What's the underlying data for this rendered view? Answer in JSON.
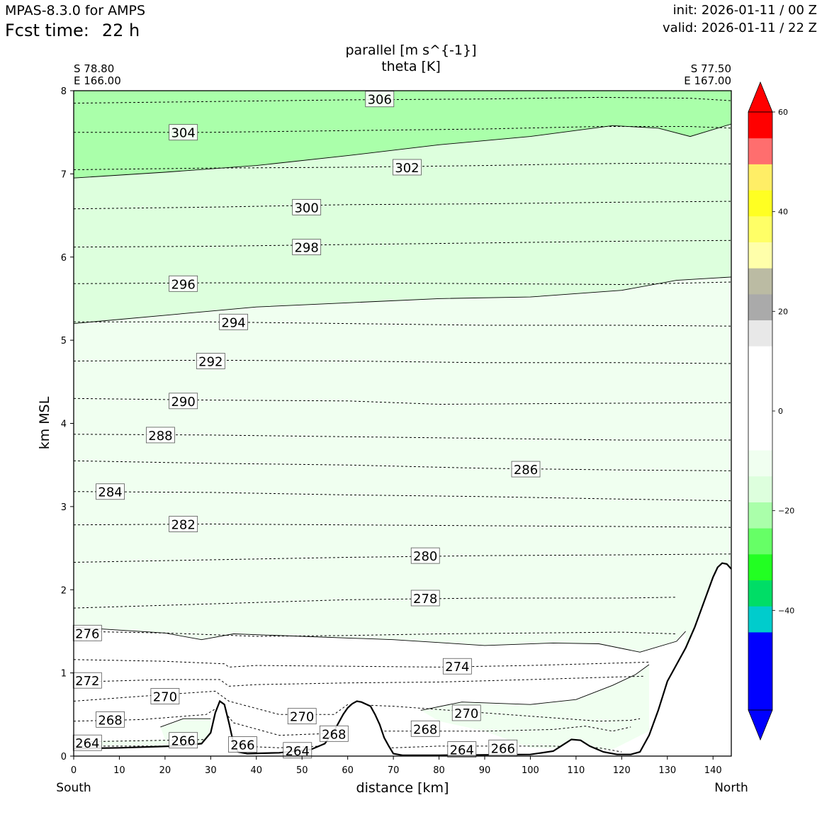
{
  "header": {
    "model": "MPAS-8.3.0 for AMPS",
    "fcst_label": "Fcst time:",
    "fcst_value": "22 h",
    "init": "init: 2026-01-11 / 00 Z",
    "valid": "valid: 2026-01-11 / 22 Z"
  },
  "titles": {
    "line1": "parallel [m s^{-1}]",
    "line2": "theta [K]"
  },
  "endpoints": {
    "left_lat": "S 78.80",
    "left_lon": "E 166.00",
    "right_lat": "S 77.50",
    "right_lon": "E 167.00",
    "left_dir": "South",
    "right_dir": "North"
  },
  "chart_data": {
    "type": "cross-section",
    "xlabel": "distance [km]",
    "ylabel": "km MSL",
    "xlim": [
      0,
      144
    ],
    "ylim": [
      0,
      8
    ],
    "x_ticks": [
      "0",
      "10",
      "20",
      "30",
      "40",
      "50",
      "60",
      "70",
      "80",
      "90",
      "100",
      "110",
      "120",
      "130",
      "140"
    ],
    "y_ticks": [
      "0",
      "1",
      "2",
      "3",
      "4",
      "5",
      "6",
      "7",
      "8"
    ],
    "filled_parallel_wind": [
      {
        "range": "-18 to -15",
        "color": "#aaffaa",
        "region": "upper layer above ~7 km (south) to ~7.6 km (north)"
      },
      {
        "range": "-15 to -12",
        "color": "#ddffdd",
        "region": "between ~5.2-5.8 km and ~7-7.6 km"
      },
      {
        "range": "-12 to -9",
        "color": "#f0fff0",
        "region": "between ~1.5 km and ~5.2-5.8 km, plus low-level pockets"
      },
      {
        "range": "-9 to 0",
        "color": "#ffffff",
        "region": "boundary layer below ~1.5 km"
      }
    ],
    "terrain": {
      "x": [
        0,
        10,
        22,
        28,
        30,
        31,
        32,
        33,
        34,
        35,
        36,
        38,
        45,
        52,
        55,
        57,
        59,
        60,
        61,
        62,
        63,
        65,
        66,
        67,
        68,
        69,
        70,
        71,
        72,
        80,
        100,
        105,
        107,
        109,
        111,
        113,
        116,
        119,
        122,
        124,
        126,
        128,
        130,
        132,
        134,
        136,
        138,
        140,
        141,
        142,
        143,
        144
      ],
      "y": [
        0.09,
        0.1,
        0.12,
        0.15,
        0.28,
        0.52,
        0.66,
        0.62,
        0.4,
        0.15,
        0.05,
        0.03,
        0.04,
        0.08,
        0.15,
        0.3,
        0.5,
        0.58,
        0.63,
        0.66,
        0.65,
        0.6,
        0.5,
        0.38,
        0.22,
        0.12,
        0.03,
        0.02,
        0.01,
        0.01,
        0.02,
        0.06,
        0.13,
        0.2,
        0.19,
        0.12,
        0.05,
        0.02,
        0.02,
        0.05,
        0.25,
        0.55,
        0.9,
        1.1,
        1.3,
        1.55,
        1.85,
        2.15,
        2.27,
        2.32,
        2.31,
        2.25
      ]
    },
    "theta_contours": [
      {
        "level": "306",
        "label_x": 67,
        "label_y": 7.9,
        "path": [
          [
            0,
            7.85
          ],
          [
            30,
            7.87
          ],
          [
            60,
            7.89
          ],
          [
            90,
            7.9
          ],
          [
            115,
            7.92
          ],
          [
            135,
            7.91
          ],
          [
            144,
            7.88
          ]
        ]
      },
      {
        "level": "304",
        "label_x": 24,
        "label_y": 7.5,
        "path": [
          [
            0,
            7.5
          ],
          [
            30,
            7.5
          ],
          [
            60,
            7.52
          ],
          [
            90,
            7.54
          ],
          [
            115,
            7.57
          ],
          [
            135,
            7.57
          ],
          [
            144,
            7.55
          ]
        ]
      },
      {
        "level": "302",
        "label_x": 73,
        "label_y": 7.08,
        "path": [
          [
            0,
            7.05
          ],
          [
            30,
            7.07
          ],
          [
            60,
            7.08
          ],
          [
            90,
            7.1
          ],
          [
            110,
            7.12
          ],
          [
            130,
            7.13
          ],
          [
            144,
            7.12
          ]
        ]
      },
      {
        "level": "300",
        "label_x": 51,
        "label_y": 6.6,
        "path": [
          [
            0,
            6.58
          ],
          [
            30,
            6.6
          ],
          [
            60,
            6.63
          ],
          [
            90,
            6.64
          ],
          [
            120,
            6.66
          ],
          [
            144,
            6.67
          ]
        ]
      },
      {
        "level": "298",
        "label_x": 51,
        "label_y": 6.12,
        "path": [
          [
            0,
            6.12
          ],
          [
            30,
            6.13
          ],
          [
            60,
            6.15
          ],
          [
            90,
            6.17
          ],
          [
            120,
            6.19
          ],
          [
            144,
            6.2
          ]
        ]
      },
      {
        "level": "296",
        "label_x": 24,
        "label_y": 5.68,
        "path": [
          [
            0,
            5.68
          ],
          [
            30,
            5.69
          ],
          [
            60,
            5.69
          ],
          [
            90,
            5.68
          ],
          [
            120,
            5.67
          ],
          [
            144,
            5.7
          ]
        ]
      },
      {
        "level": "294",
        "label_x": 35,
        "label_y": 5.22,
        "path": [
          [
            0,
            5.22
          ],
          [
            30,
            5.22
          ],
          [
            60,
            5.2
          ],
          [
            90,
            5.18
          ],
          [
            120,
            5.18
          ],
          [
            144,
            5.17
          ]
        ]
      },
      {
        "level": "292",
        "label_x": 30,
        "label_y": 4.75,
        "path": [
          [
            0,
            4.75
          ],
          [
            30,
            4.76
          ],
          [
            60,
            4.75
          ],
          [
            90,
            4.73
          ],
          [
            120,
            4.73
          ],
          [
            144,
            4.72
          ]
        ]
      },
      {
        "level": "290",
        "label_x": 24,
        "label_y": 4.27,
        "path": [
          [
            0,
            4.3
          ],
          [
            30,
            4.28
          ],
          [
            60,
            4.27
          ],
          [
            80,
            4.23
          ],
          [
            110,
            4.24
          ],
          [
            144,
            4.25
          ]
        ]
      },
      {
        "level": "288",
        "label_x": 19,
        "label_y": 3.86,
        "path": [
          [
            0,
            3.87
          ],
          [
            30,
            3.86
          ],
          [
            60,
            3.84
          ],
          [
            90,
            3.82
          ],
          [
            120,
            3.8
          ],
          [
            144,
            3.8
          ]
        ]
      },
      {
        "level": "286",
        "label_x": 99,
        "label_y": 3.45,
        "path": [
          [
            0,
            3.55
          ],
          [
            30,
            3.52
          ],
          [
            60,
            3.5
          ],
          [
            90,
            3.46
          ],
          [
            120,
            3.44
          ],
          [
            144,
            3.43
          ]
        ]
      },
      {
        "level": "284",
        "label_x": 8,
        "label_y": 3.18,
        "path": [
          [
            0,
            3.18
          ],
          [
            30,
            3.17
          ],
          [
            60,
            3.14
          ],
          [
            90,
            3.12
          ],
          [
            120,
            3.09
          ],
          [
            144,
            3.07
          ]
        ]
      },
      {
        "level": "282",
        "label_x": 24,
        "label_y": 2.79,
        "path": [
          [
            0,
            2.78
          ],
          [
            30,
            2.79
          ],
          [
            60,
            2.78
          ],
          [
            90,
            2.77
          ],
          [
            120,
            2.76
          ],
          [
            144,
            2.75
          ]
        ]
      },
      {
        "level": "280",
        "label_x": 77,
        "label_y": 2.41,
        "path": [
          [
            0,
            2.33
          ],
          [
            30,
            2.36
          ],
          [
            60,
            2.39
          ],
          [
            90,
            2.41
          ],
          [
            120,
            2.42
          ],
          [
            144,
            2.43
          ]
        ]
      },
      {
        "level": "278",
        "label_x": 77,
        "label_y": 1.9,
        "path": [
          [
            0,
            1.78
          ],
          [
            30,
            1.83
          ],
          [
            60,
            1.88
          ],
          [
            90,
            1.9
          ],
          [
            120,
            1.9
          ],
          [
            132,
            1.91
          ]
        ]
      },
      {
        "level": "276",
        "label_x": 3,
        "label_y": 1.48,
        "path": [
          [
            0,
            1.5
          ],
          [
            20,
            1.48
          ],
          [
            30,
            1.46
          ],
          [
            40,
            1.44
          ],
          [
            60,
            1.45
          ],
          [
            80,
            1.47
          ],
          [
            100,
            1.48
          ],
          [
            120,
            1.49
          ],
          [
            132,
            1.47
          ]
        ]
      },
      {
        "level": "274",
        "label_x": 84,
        "label_y": 1.08,
        "path": [
          [
            0,
            1.16
          ],
          [
            20,
            1.14
          ],
          [
            33,
            1.11
          ],
          [
            34,
            1.07
          ],
          [
            40,
            1.09
          ],
          [
            60,
            1.08
          ],
          [
            80,
            1.07
          ],
          [
            100,
            1.09
          ],
          [
            120,
            1.12
          ],
          [
            126,
            1.13
          ]
        ]
      },
      {
        "level": "272",
        "label_x": 3,
        "label_y": 0.91,
        "path": [
          [
            0,
            0.89
          ],
          [
            20,
            0.92
          ],
          [
            32,
            0.92
          ],
          [
            34,
            0.84
          ],
          [
            40,
            0.86
          ],
          [
            60,
            0.88
          ],
          [
            80,
            0.89
          ],
          [
            100,
            0.92
          ],
          [
            118,
            0.95
          ],
          [
            125,
            0.96
          ]
        ]
      },
      {
        "level": "270",
        "label_x": 20,
        "label_y": 0.72,
        "path": [
          [
            0,
            0.66
          ],
          [
            20,
            0.74
          ],
          [
            31,
            0.78
          ],
          [
            34,
            0.66
          ],
          [
            45,
            0.5
          ],
          [
            57,
            0.5
          ],
          [
            60,
            0.62
          ],
          [
            70,
            0.6
          ],
          [
            80,
            0.56
          ],
          [
            100,
            0.48
          ],
          [
            115,
            0.42
          ],
          [
            122,
            0.43
          ],
          [
            124,
            0.45
          ]
        ]
      },
      {
        "level": "270",
        "label_x": 50,
        "label_y": 0.48,
        "path": []
      },
      {
        "level": "270",
        "label_x": 86,
        "label_y": 0.52,
        "path": []
      },
      {
        "level": "268",
        "label_x": 8,
        "label_y": 0.44,
        "path": [
          [
            0,
            0.42
          ],
          [
            15,
            0.44
          ],
          [
            29,
            0.5
          ],
          [
            32,
            0.6
          ],
          [
            35,
            0.4
          ],
          [
            45,
            0.25
          ],
          [
            55,
            0.27
          ],
          [
            57,
            0.3
          ],
          [
            70,
            0.3
          ],
          [
            90,
            0.3
          ],
          [
            105,
            0.32
          ],
          [
            112,
            0.36
          ],
          [
            118,
            0.3
          ],
          [
            122,
            0.35
          ]
        ]
      },
      {
        "level": "268",
        "label_x": 57,
        "label_y": 0.27,
        "path": []
      },
      {
        "level": "268",
        "label_x": 77,
        "label_y": 0.33,
        "path": []
      },
      {
        "level": "266",
        "label_x": 24,
        "label_y": 0.19,
        "path": [
          [
            0,
            0.17
          ],
          [
            20,
            0.19
          ],
          [
            30,
            0.2
          ],
          [
            36,
            0.12
          ],
          [
            45,
            0.1
          ],
          [
            54,
            0.12
          ],
          [
            70,
            0.1
          ],
          [
            80,
            0.12
          ],
          [
            95,
            0.12
          ],
          [
            105,
            0.12
          ],
          [
            115,
            0.1
          ],
          [
            120,
            0.05
          ]
        ]
      },
      {
        "level": "266",
        "label_x": 37,
        "label_y": 0.14,
        "path": []
      },
      {
        "level": "266",
        "label_x": 94,
        "label_y": 0.1,
        "path": []
      },
      {
        "level": "264",
        "label_x": 3,
        "label_y": 0.16,
        "path": [
          [
            0,
            0.12
          ],
          [
            20,
            0.12
          ],
          [
            30,
            0.1
          ]
        ]
      },
      {
        "level": "264",
        "label_x": 49,
        "label_y": 0.07,
        "path": []
      },
      {
        "level": "264",
        "label_x": 85,
        "label_y": 0.08,
        "path": []
      }
    ],
    "colorbar": {
      "levels": [
        -60,
        -54,
        -48,
        -42,
        -36,
        -30,
        -24,
        -18,
        -15,
        -12,
        -9,
        -6,
        -3,
        0,
        3,
        6,
        9,
        12,
        15,
        18,
        21,
        24,
        30,
        36,
        42,
        48,
        54,
        60
      ],
      "tick_labels": [
        "60",
        "40",
        "20",
        "0",
        "−20",
        "−40"
      ],
      "colors_bottom_to_top": [
        "#0000ff",
        "#0000ff",
        "#0000ff",
        "#00cccc",
        "#00dd66",
        "#22ff22",
        "#66ff66",
        "#aaffaa",
        "#ddffdd",
        "#f0fff0",
        "#ffffff",
        "#ffffff",
        "#ffffff",
        "#ffffff",
        "#e8e8e8",
        "#aaaaaa",
        "#bbbba3",
        "#ffffaa",
        "#ffff66",
        "#ffff22",
        "#ffee66",
        "#ff6e6e",
        "#ff0000"
      ],
      "under_color": "#0000ff",
      "over_color": "#ff0000"
    }
  }
}
